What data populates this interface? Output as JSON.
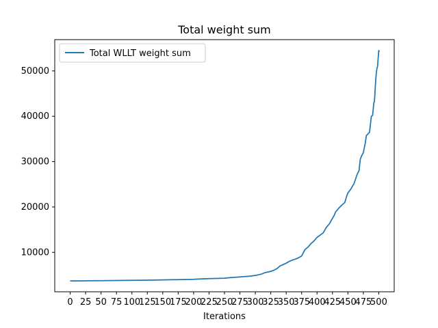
{
  "chart_data": {
    "type": "line",
    "title": "Total weight sum",
    "xlabel": "Iterations",
    "ylabel": "",
    "xlim": [
      -25,
      525
    ],
    "ylim": [
      1300,
      56900
    ],
    "xticks": [
      0,
      25,
      50,
      75,
      100,
      125,
      150,
      175,
      200,
      225,
      250,
      275,
      300,
      325,
      350,
      375,
      400,
      425,
      450,
      475,
      500
    ],
    "yticks": [
      10000,
      20000,
      30000,
      40000,
      50000
    ],
    "grid": false,
    "legend": {
      "position": "top-left"
    },
    "series": [
      {
        "name": "Total WLLT weight sum",
        "color": "#1f77b4",
        "x": [
          0,
          25,
          50,
          75,
          100,
          125,
          150,
          175,
          200,
          210,
          225,
          250,
          260,
          275,
          290,
          300,
          310,
          315,
          325,
          330,
          335,
          340,
          345,
          350,
          355,
          360,
          365,
          370,
          375,
          380,
          382,
          385,
          390,
          395,
          400,
          405,
          410,
          415,
          420,
          425,
          428,
          430,
          435,
          440,
          445,
          448,
          450,
          455,
          460,
          465,
          468,
          470,
          472,
          475,
          478,
          480,
          482,
          485,
          488,
          490,
          492,
          493,
          495,
          496,
          497,
          498,
          500,
          501
        ],
        "y": [
          3700,
          3720,
          3750,
          3780,
          3820,
          3860,
          3920,
          3980,
          4050,
          4120,
          4200,
          4300,
          4430,
          4570,
          4720,
          4900,
          5200,
          5500,
          5800,
          6050,
          6400,
          7000,
          7300,
          7600,
          8000,
          8300,
          8500,
          8800,
          9200,
          10500,
          10800,
          11100,
          11900,
          12500,
          13300,
          13800,
          14300,
          15500,
          16300,
          17500,
          18200,
          18900,
          19700,
          20400,
          21000,
          22400,
          23100,
          24000,
          25200,
          27200,
          28000,
          30500,
          31200,
          32000,
          34000,
          35800,
          36000,
          36500,
          40000,
          40200,
          43000,
          43200,
          48000,
          49500,
          50500,
          51000,
          54500,
          54200
        ]
      }
    ]
  }
}
